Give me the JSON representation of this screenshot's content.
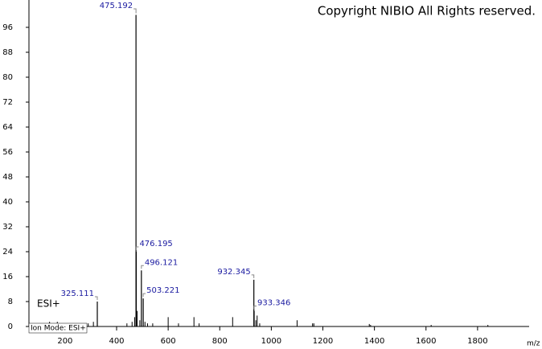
{
  "chart_data": {
    "type": "spectrum",
    "copyright": "Copyright NIBIO All Rights reserved.",
    "mode_label": "ESI+",
    "ion_mode": "Ion Mode: ESI+",
    "x_label": "m/z",
    "x": [
      325.111,
      475.192,
      476.195,
      496.121,
      503.221,
      932.345,
      933.346
    ],
    "values": [
      8,
      100,
      24,
      18,
      9,
      15,
      5
    ],
    "minor_x": [
      110,
      140,
      150,
      170,
      200,
      230,
      260,
      290,
      310,
      440,
      460,
      470,
      480,
      490,
      510,
      520,
      540,
      600,
      640,
      700,
      720,
      850,
      940,
      945,
      955,
      1100,
      1160,
      1165,
      1380,
      1385,
      1620,
      1840
    ],
    "minor_values": [
      1,
      1.5,
      1,
      1.5,
      1,
      1,
      1,
      1,
      1.5,
      1,
      1.5,
      3,
      5,
      2,
      1.5,
      1,
      1,
      3,
      1,
      3,
      1,
      3,
      2,
      3.5,
      1,
      2,
      1,
      1,
      0.8,
      0.5,
      0.5,
      0.5
    ],
    "xlim": [
      60,
      2000
    ],
    "ylim": [
      0,
      104
    ],
    "xticks": [
      200,
      400,
      600,
      800,
      1000,
      1200,
      1400,
      1600,
      1800
    ],
    "yticks": [
      0,
      8,
      16,
      24,
      32,
      40,
      48,
      56,
      64,
      72,
      80,
      88,
      96
    ],
    "color": "#000000",
    "label_color": "#1a1aa0"
  }
}
